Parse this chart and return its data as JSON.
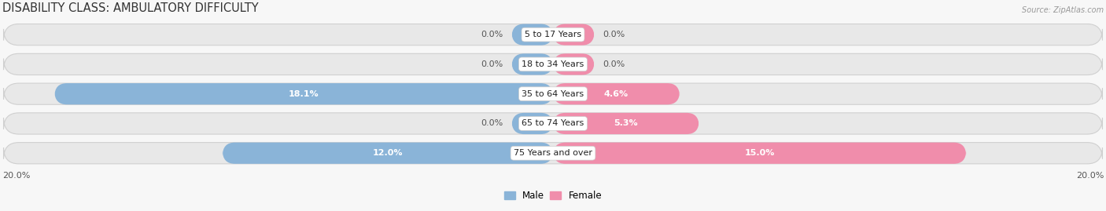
{
  "title": "DISABILITY CLASS: AMBULATORY DIFFICULTY",
  "source": "Source: ZipAtlas.com",
  "categories": [
    "5 to 17 Years",
    "18 to 34 Years",
    "35 to 64 Years",
    "65 to 74 Years",
    "75 Years and over"
  ],
  "male_values": [
    0.0,
    0.0,
    18.1,
    0.0,
    12.0
  ],
  "female_values": [
    0.0,
    0.0,
    4.6,
    5.3,
    15.0
  ],
  "male_zero_stub": 1.5,
  "female_zero_stub": 1.5,
  "max_val": 20.0,
  "male_color": "#8ab4d8",
  "female_color": "#f08dab",
  "bar_bg_color": "#e8e8e8",
  "bar_bg_outline": "#d0d0d0",
  "title_fontsize": 10.5,
  "label_fontsize": 8.0,
  "value_fontsize": 8.0,
  "axis_label": "20.0%",
  "legend_male": "Male",
  "legend_female": "Female",
  "bg_color": "#f7f7f7"
}
